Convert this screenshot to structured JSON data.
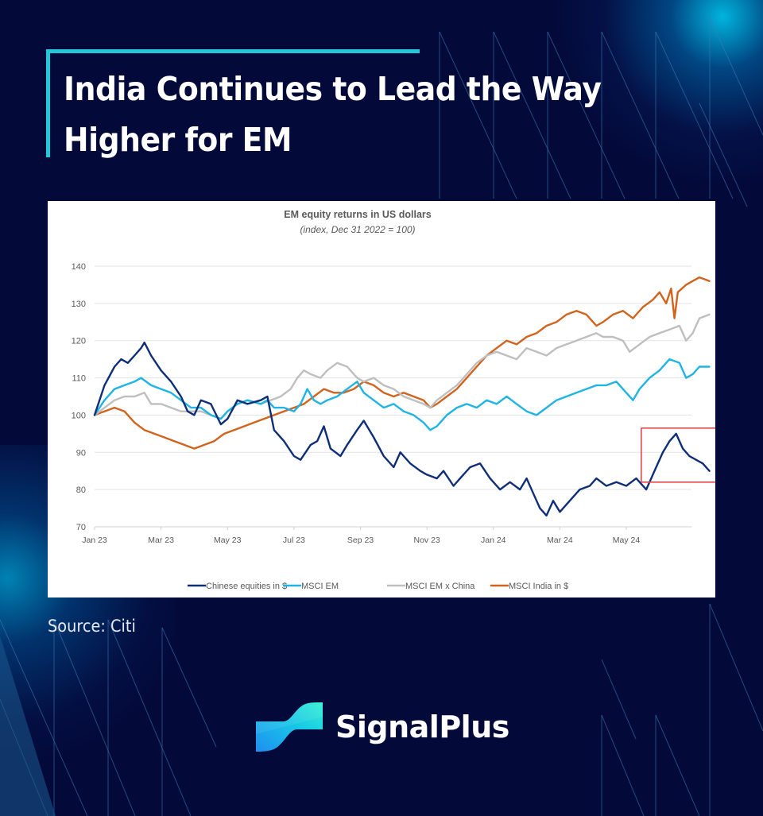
{
  "header": {
    "title_line1": "India Continues to Lead the Way",
    "title_line2": "Higher for EM"
  },
  "source_label": "Source: Citi",
  "brand": {
    "name": "SignalPlus",
    "logo_icon": "signalplus-logo-icon"
  },
  "colors": {
    "background": "#030a3a",
    "accent": "#22c7d8",
    "highlight_box": "#e0474c"
  },
  "chart_data": {
    "type": "line",
    "title": "EM equity returns in US dollars",
    "subtitle": "(index, Dec 31 2022 = 100)",
    "xlabel": "",
    "ylabel": "",
    "ylim": [
      70,
      140
    ],
    "yticks": [
      70,
      80,
      90,
      100,
      110,
      120,
      130,
      140
    ],
    "x_unit": "months since Jan 2023",
    "xlim": [
      0,
      18.5
    ],
    "xticks": [
      {
        "x": 0,
        "label": "Jan 23"
      },
      {
        "x": 2,
        "label": "Mar 23"
      },
      {
        "x": 4,
        "label": "May 23"
      },
      {
        "x": 6,
        "label": "Jul 23"
      },
      {
        "x": 8,
        "label": "Sep 23"
      },
      {
        "x": 10,
        "label": "Nov 23"
      },
      {
        "x": 12,
        "label": "Jan 24"
      },
      {
        "x": 14,
        "label": "Mar 24"
      },
      {
        "x": 16,
        "label": "May 24"
      }
    ],
    "grid": "horizontal",
    "legend": "bottom",
    "annotation": {
      "type": "box",
      "label": "",
      "x_range": [
        16.45,
        18.7
      ],
      "y_range": [
        82,
        96.5
      ],
      "color": "#e0474c"
    },
    "series": [
      {
        "name": "Chinese equities in $",
        "color": "#0e2f78",
        "points": [
          [
            0,
            100
          ],
          [
            0.3,
            108
          ],
          [
            0.6,
            113
          ],
          [
            0.8,
            115
          ],
          [
            1.0,
            114
          ],
          [
            1.2,
            116
          ],
          [
            1.4,
            118
          ],
          [
            1.5,
            119.5
          ],
          [
            1.7,
            116
          ],
          [
            2.0,
            112
          ],
          [
            2.3,
            109
          ],
          [
            2.6,
            105
          ],
          [
            2.8,
            101
          ],
          [
            3.0,
            100
          ],
          [
            3.2,
            104
          ],
          [
            3.5,
            103
          ],
          [
            3.8,
            97.5
          ],
          [
            4.0,
            99
          ],
          [
            4.3,
            104
          ],
          [
            4.6,
            103
          ],
          [
            5.0,
            104
          ],
          [
            5.2,
            105
          ],
          [
            5.4,
            96
          ],
          [
            5.7,
            93
          ],
          [
            6.0,
            89
          ],
          [
            6.2,
            88
          ],
          [
            6.5,
            92
          ],
          [
            6.7,
            93
          ],
          [
            6.9,
            97
          ],
          [
            7.1,
            91
          ],
          [
            7.4,
            89
          ],
          [
            7.6,
            92
          ],
          [
            7.9,
            96
          ],
          [
            8.1,
            98.5
          ],
          [
            8.4,
            94
          ],
          [
            8.7,
            89
          ],
          [
            9.0,
            86
          ],
          [
            9.2,
            90
          ],
          [
            9.5,
            87
          ],
          [
            9.8,
            85
          ],
          [
            10.0,
            84
          ],
          [
            10.3,
            83
          ],
          [
            10.5,
            85
          ],
          [
            10.8,
            81
          ],
          [
            11.0,
            83
          ],
          [
            11.3,
            86
          ],
          [
            11.6,
            87
          ],
          [
            11.9,
            83
          ],
          [
            12.2,
            80
          ],
          [
            12.5,
            82
          ],
          [
            12.8,
            80
          ],
          [
            13.0,
            83
          ],
          [
            13.2,
            79
          ],
          [
            13.4,
            75
          ],
          [
            13.6,
            73
          ],
          [
            13.8,
            77
          ],
          [
            14.0,
            74
          ],
          [
            14.3,
            77
          ],
          [
            14.6,
            80
          ],
          [
            14.9,
            81
          ],
          [
            15.1,
            83
          ],
          [
            15.4,
            81
          ],
          [
            15.7,
            82
          ],
          [
            16.0,
            81
          ],
          [
            16.3,
            83
          ],
          [
            16.6,
            80
          ],
          [
            16.9,
            86
          ],
          [
            17.1,
            90
          ],
          [
            17.3,
            93
          ],
          [
            17.5,
            95
          ],
          [
            17.7,
            91
          ],
          [
            17.9,
            89
          ],
          [
            18.1,
            88
          ],
          [
            18.3,
            87
          ],
          [
            18.5,
            85
          ]
        ]
      },
      {
        "name": "MSCI EM",
        "color": "#1fb4e4",
        "points": [
          [
            0,
            100
          ],
          [
            0.3,
            104
          ],
          [
            0.6,
            107
          ],
          [
            0.9,
            108
          ],
          [
            1.2,
            109
          ],
          [
            1.4,
            110
          ],
          [
            1.7,
            108
          ],
          [
            2.0,
            107
          ],
          [
            2.3,
            106
          ],
          [
            2.6,
            104
          ],
          [
            2.9,
            102
          ],
          [
            3.2,
            102
          ],
          [
            3.5,
            100
          ],
          [
            3.8,
            99
          ],
          [
            4.0,
            101
          ],
          [
            4.3,
            103
          ],
          [
            4.6,
            104
          ],
          [
            5.0,
            103
          ],
          [
            5.2,
            104
          ],
          [
            5.4,
            102
          ],
          [
            5.7,
            102
          ],
          [
            6.0,
            101
          ],
          [
            6.2,
            103
          ],
          [
            6.4,
            107
          ],
          [
            6.6,
            104
          ],
          [
            6.8,
            103
          ],
          [
            7.0,
            104
          ],
          [
            7.3,
            105
          ],
          [
            7.6,
            107
          ],
          [
            7.9,
            109
          ],
          [
            8.1,
            106
          ],
          [
            8.4,
            104
          ],
          [
            8.7,
            102
          ],
          [
            9.0,
            103
          ],
          [
            9.3,
            101
          ],
          [
            9.6,
            100
          ],
          [
            9.9,
            98
          ],
          [
            10.1,
            96
          ],
          [
            10.3,
            97
          ],
          [
            10.6,
            100
          ],
          [
            10.9,
            102
          ],
          [
            11.2,
            103
          ],
          [
            11.5,
            102
          ],
          [
            11.8,
            104
          ],
          [
            12.1,
            103
          ],
          [
            12.4,
            105
          ],
          [
            12.7,
            103
          ],
          [
            13.0,
            101
          ],
          [
            13.3,
            100
          ],
          [
            13.6,
            102
          ],
          [
            13.9,
            104
          ],
          [
            14.2,
            105
          ],
          [
            14.5,
            106
          ],
          [
            14.8,
            107
          ],
          [
            15.1,
            108
          ],
          [
            15.4,
            108
          ],
          [
            15.7,
            109
          ],
          [
            16.0,
            106
          ],
          [
            16.2,
            104
          ],
          [
            16.4,
            107
          ],
          [
            16.7,
            110
          ],
          [
            17.0,
            112
          ],
          [
            17.3,
            115
          ],
          [
            17.6,
            114
          ],
          [
            17.8,
            110
          ],
          [
            18.0,
            111
          ],
          [
            18.2,
            113
          ],
          [
            18.5,
            113
          ]
        ]
      },
      {
        "name": "MSCI EM x China",
        "color": "#bfbfbf",
        "points": [
          [
            0,
            100
          ],
          [
            0.3,
            102
          ],
          [
            0.6,
            104
          ],
          [
            0.9,
            105
          ],
          [
            1.2,
            105
          ],
          [
            1.5,
            106
          ],
          [
            1.7,
            103
          ],
          [
            2.0,
            103
          ],
          [
            2.3,
            102
          ],
          [
            2.6,
            101
          ],
          [
            2.9,
            101
          ],
          [
            3.2,
            101
          ],
          [
            3.5,
            100
          ],
          [
            3.8,
            99
          ],
          [
            4.0,
            101
          ],
          [
            4.3,
            103
          ],
          [
            4.6,
            104
          ],
          [
            5.0,
            103
          ],
          [
            5.3,
            104
          ],
          [
            5.6,
            105
          ],
          [
            5.9,
            107
          ],
          [
            6.1,
            110
          ],
          [
            6.3,
            112
          ],
          [
            6.5,
            111
          ],
          [
            6.8,
            110
          ],
          [
            7.0,
            112
          ],
          [
            7.3,
            114
          ],
          [
            7.6,
            113
          ],
          [
            7.9,
            110
          ],
          [
            8.1,
            109
          ],
          [
            8.4,
            110
          ],
          [
            8.7,
            108
          ],
          [
            9.0,
            107
          ],
          [
            9.3,
            105
          ],
          [
            9.6,
            104
          ],
          [
            9.9,
            103
          ],
          [
            10.1,
            102
          ],
          [
            10.3,
            104
          ],
          [
            10.6,
            106
          ],
          [
            10.9,
            108
          ],
          [
            11.2,
            111
          ],
          [
            11.5,
            114
          ],
          [
            11.8,
            116
          ],
          [
            12.1,
            117
          ],
          [
            12.4,
            116
          ],
          [
            12.7,
            115
          ],
          [
            13.0,
            118
          ],
          [
            13.3,
            117
          ],
          [
            13.6,
            116
          ],
          [
            13.9,
            118
          ],
          [
            14.2,
            119
          ],
          [
            14.5,
            120
          ],
          [
            14.8,
            121
          ],
          [
            15.1,
            122
          ],
          [
            15.3,
            121
          ],
          [
            15.6,
            121
          ],
          [
            15.9,
            120
          ],
          [
            16.1,
            117
          ],
          [
            16.4,
            119
          ],
          [
            16.7,
            121
          ],
          [
            17.0,
            122
          ],
          [
            17.3,
            123
          ],
          [
            17.6,
            124
          ],
          [
            17.8,
            120
          ],
          [
            18.0,
            122
          ],
          [
            18.2,
            126
          ],
          [
            18.5,
            127
          ]
        ]
      },
      {
        "name": "MSCI India in $",
        "color": "#d1631c",
        "points": [
          [
            0,
            100
          ],
          [
            0.3,
            101
          ],
          [
            0.6,
            102
          ],
          [
            0.9,
            101
          ],
          [
            1.2,
            98
          ],
          [
            1.5,
            96
          ],
          [
            1.8,
            95
          ],
          [
            2.1,
            94
          ],
          [
            2.4,
            93
          ],
          [
            2.7,
            92
          ],
          [
            3.0,
            91
          ],
          [
            3.3,
            92
          ],
          [
            3.6,
            93
          ],
          [
            3.9,
            95
          ],
          [
            4.2,
            96
          ],
          [
            4.5,
            97
          ],
          [
            4.8,
            98
          ],
          [
            5.1,
            99
          ],
          [
            5.4,
            100
          ],
          [
            5.7,
            101
          ],
          [
            6.0,
            102
          ],
          [
            6.3,
            103
          ],
          [
            6.6,
            105
          ],
          [
            6.9,
            107
          ],
          [
            7.2,
            106
          ],
          [
            7.5,
            106
          ],
          [
            7.8,
            107
          ],
          [
            8.1,
            109
          ],
          [
            8.4,
            108
          ],
          [
            8.7,
            106
          ],
          [
            9.0,
            105
          ],
          [
            9.3,
            106
          ],
          [
            9.6,
            105
          ],
          [
            9.9,
            104
          ],
          [
            10.1,
            102
          ],
          [
            10.3,
            103
          ],
          [
            10.6,
            105
          ],
          [
            10.9,
            107
          ],
          [
            11.2,
            110
          ],
          [
            11.5,
            113
          ],
          [
            11.8,
            116
          ],
          [
            12.1,
            118
          ],
          [
            12.4,
            120
          ],
          [
            12.7,
            119
          ],
          [
            13.0,
            121
          ],
          [
            13.3,
            122
          ],
          [
            13.6,
            124
          ],
          [
            13.9,
            125
          ],
          [
            14.2,
            127
          ],
          [
            14.5,
            128
          ],
          [
            14.8,
            127
          ],
          [
            15.1,
            124
          ],
          [
            15.3,
            125
          ],
          [
            15.6,
            127
          ],
          [
            15.9,
            128
          ],
          [
            16.2,
            126
          ],
          [
            16.5,
            129
          ],
          [
            16.8,
            131
          ],
          [
            17.0,
            133
          ],
          [
            17.2,
            130
          ],
          [
            17.35,
            134
          ],
          [
            17.45,
            126
          ],
          [
            17.55,
            133
          ],
          [
            17.8,
            135
          ],
          [
            18.0,
            136
          ],
          [
            18.2,
            137
          ],
          [
            18.5,
            136
          ]
        ]
      }
    ]
  }
}
